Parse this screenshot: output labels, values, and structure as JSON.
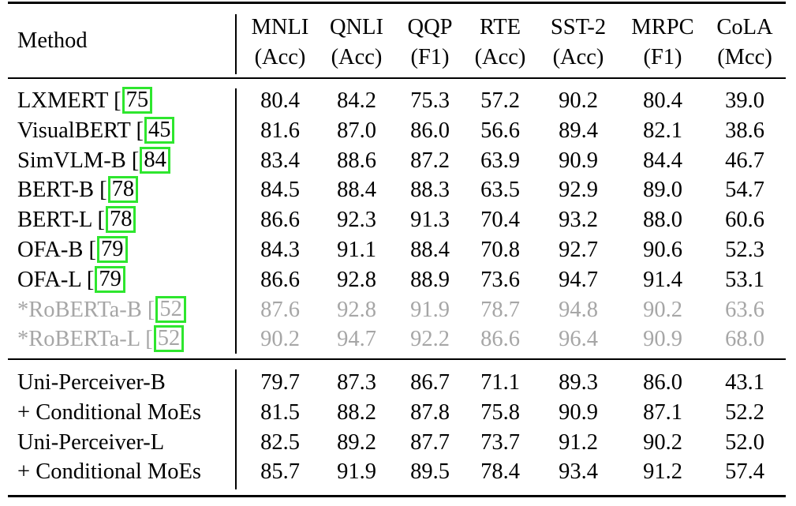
{
  "header": {
    "method_label": "Method",
    "columns": [
      {
        "name": "MNLI",
        "metric": "(Acc)"
      },
      {
        "name": "QNLI",
        "metric": "(Acc)"
      },
      {
        "name": "QQP",
        "metric": "(F1)"
      },
      {
        "name": "RTE",
        "metric": "(Acc)"
      },
      {
        "name": "SST-2",
        "metric": "(Acc)"
      },
      {
        "name": "MRPC",
        "metric": "(F1)"
      },
      {
        "name": "CoLA",
        "metric": "(Mcc)"
      }
    ]
  },
  "group1": [
    {
      "method": "LXMERT",
      "cite": "75",
      "values": [
        "80.4",
        "84.2",
        "75.3",
        "57.2",
        "90.2",
        "80.4",
        "39.0"
      ]
    },
    {
      "method": "VisualBERT",
      "cite": "45",
      "values": [
        "81.6",
        "87.0",
        "86.0",
        "56.6",
        "89.4",
        "82.1",
        "38.6"
      ]
    },
    {
      "method": "SimVLM-B",
      "cite": "84",
      "values": [
        "83.4",
        "88.6",
        "87.2",
        "63.9",
        "90.9",
        "84.4",
        "46.7"
      ]
    },
    {
      "method": "BERT-B",
      "cite": "78",
      "values": [
        "84.5",
        "88.4",
        "88.3",
        "63.5",
        "92.9",
        "89.0",
        "54.7"
      ]
    },
    {
      "method": "BERT-L",
      "cite": "78",
      "values": [
        "86.6",
        "92.3",
        "91.3",
        "70.4",
        "93.2",
        "88.0",
        "60.6"
      ]
    },
    {
      "method": "OFA-B",
      "cite": "79",
      "values": [
        "84.3",
        "91.1",
        "88.4",
        "70.8",
        "92.7",
        "90.6",
        "52.3"
      ]
    },
    {
      "method": "OFA-L",
      "cite": "79",
      "values": [
        "86.6",
        "92.8",
        "88.9",
        "73.6",
        "94.7",
        "91.4",
        "53.1"
      ]
    },
    {
      "method": "*RoBERTa-B",
      "cite": "52",
      "values": [
        "87.6",
        "92.8",
        "91.9",
        "78.7",
        "94.8",
        "90.2",
        "63.6"
      ]
    },
    {
      "method": "*RoBERTa-L",
      "cite": "52",
      "values": [
        "90.2",
        "94.7",
        "92.2",
        "86.6",
        "96.4",
        "90.9",
        "68.0"
      ]
    }
  ],
  "group2": [
    {
      "method": "Uni-Perceiver-B",
      "values": [
        "79.7",
        "87.3",
        "86.7",
        "71.1",
        "89.3",
        "86.0",
        "43.1"
      ]
    },
    {
      "method": "+ Conditional MoEs",
      "values": [
        "81.5",
        "88.2",
        "87.8",
        "75.8",
        "90.9",
        "87.1",
        "52.2"
      ]
    },
    {
      "method": "Uni-Perceiver-L",
      "values": [
        "82.5",
        "89.2",
        "87.7",
        "73.7",
        "91.2",
        "90.2",
        "52.0"
      ]
    },
    {
      "method": "+ Conditional MoEs",
      "values": [
        "85.7",
        "91.9",
        "89.5",
        "78.4",
        "93.4",
        "91.2",
        "57.4"
      ]
    }
  ],
  "colors": {
    "highlight_box": "#2ee62e",
    "gray_text": "#a6a6a6"
  }
}
